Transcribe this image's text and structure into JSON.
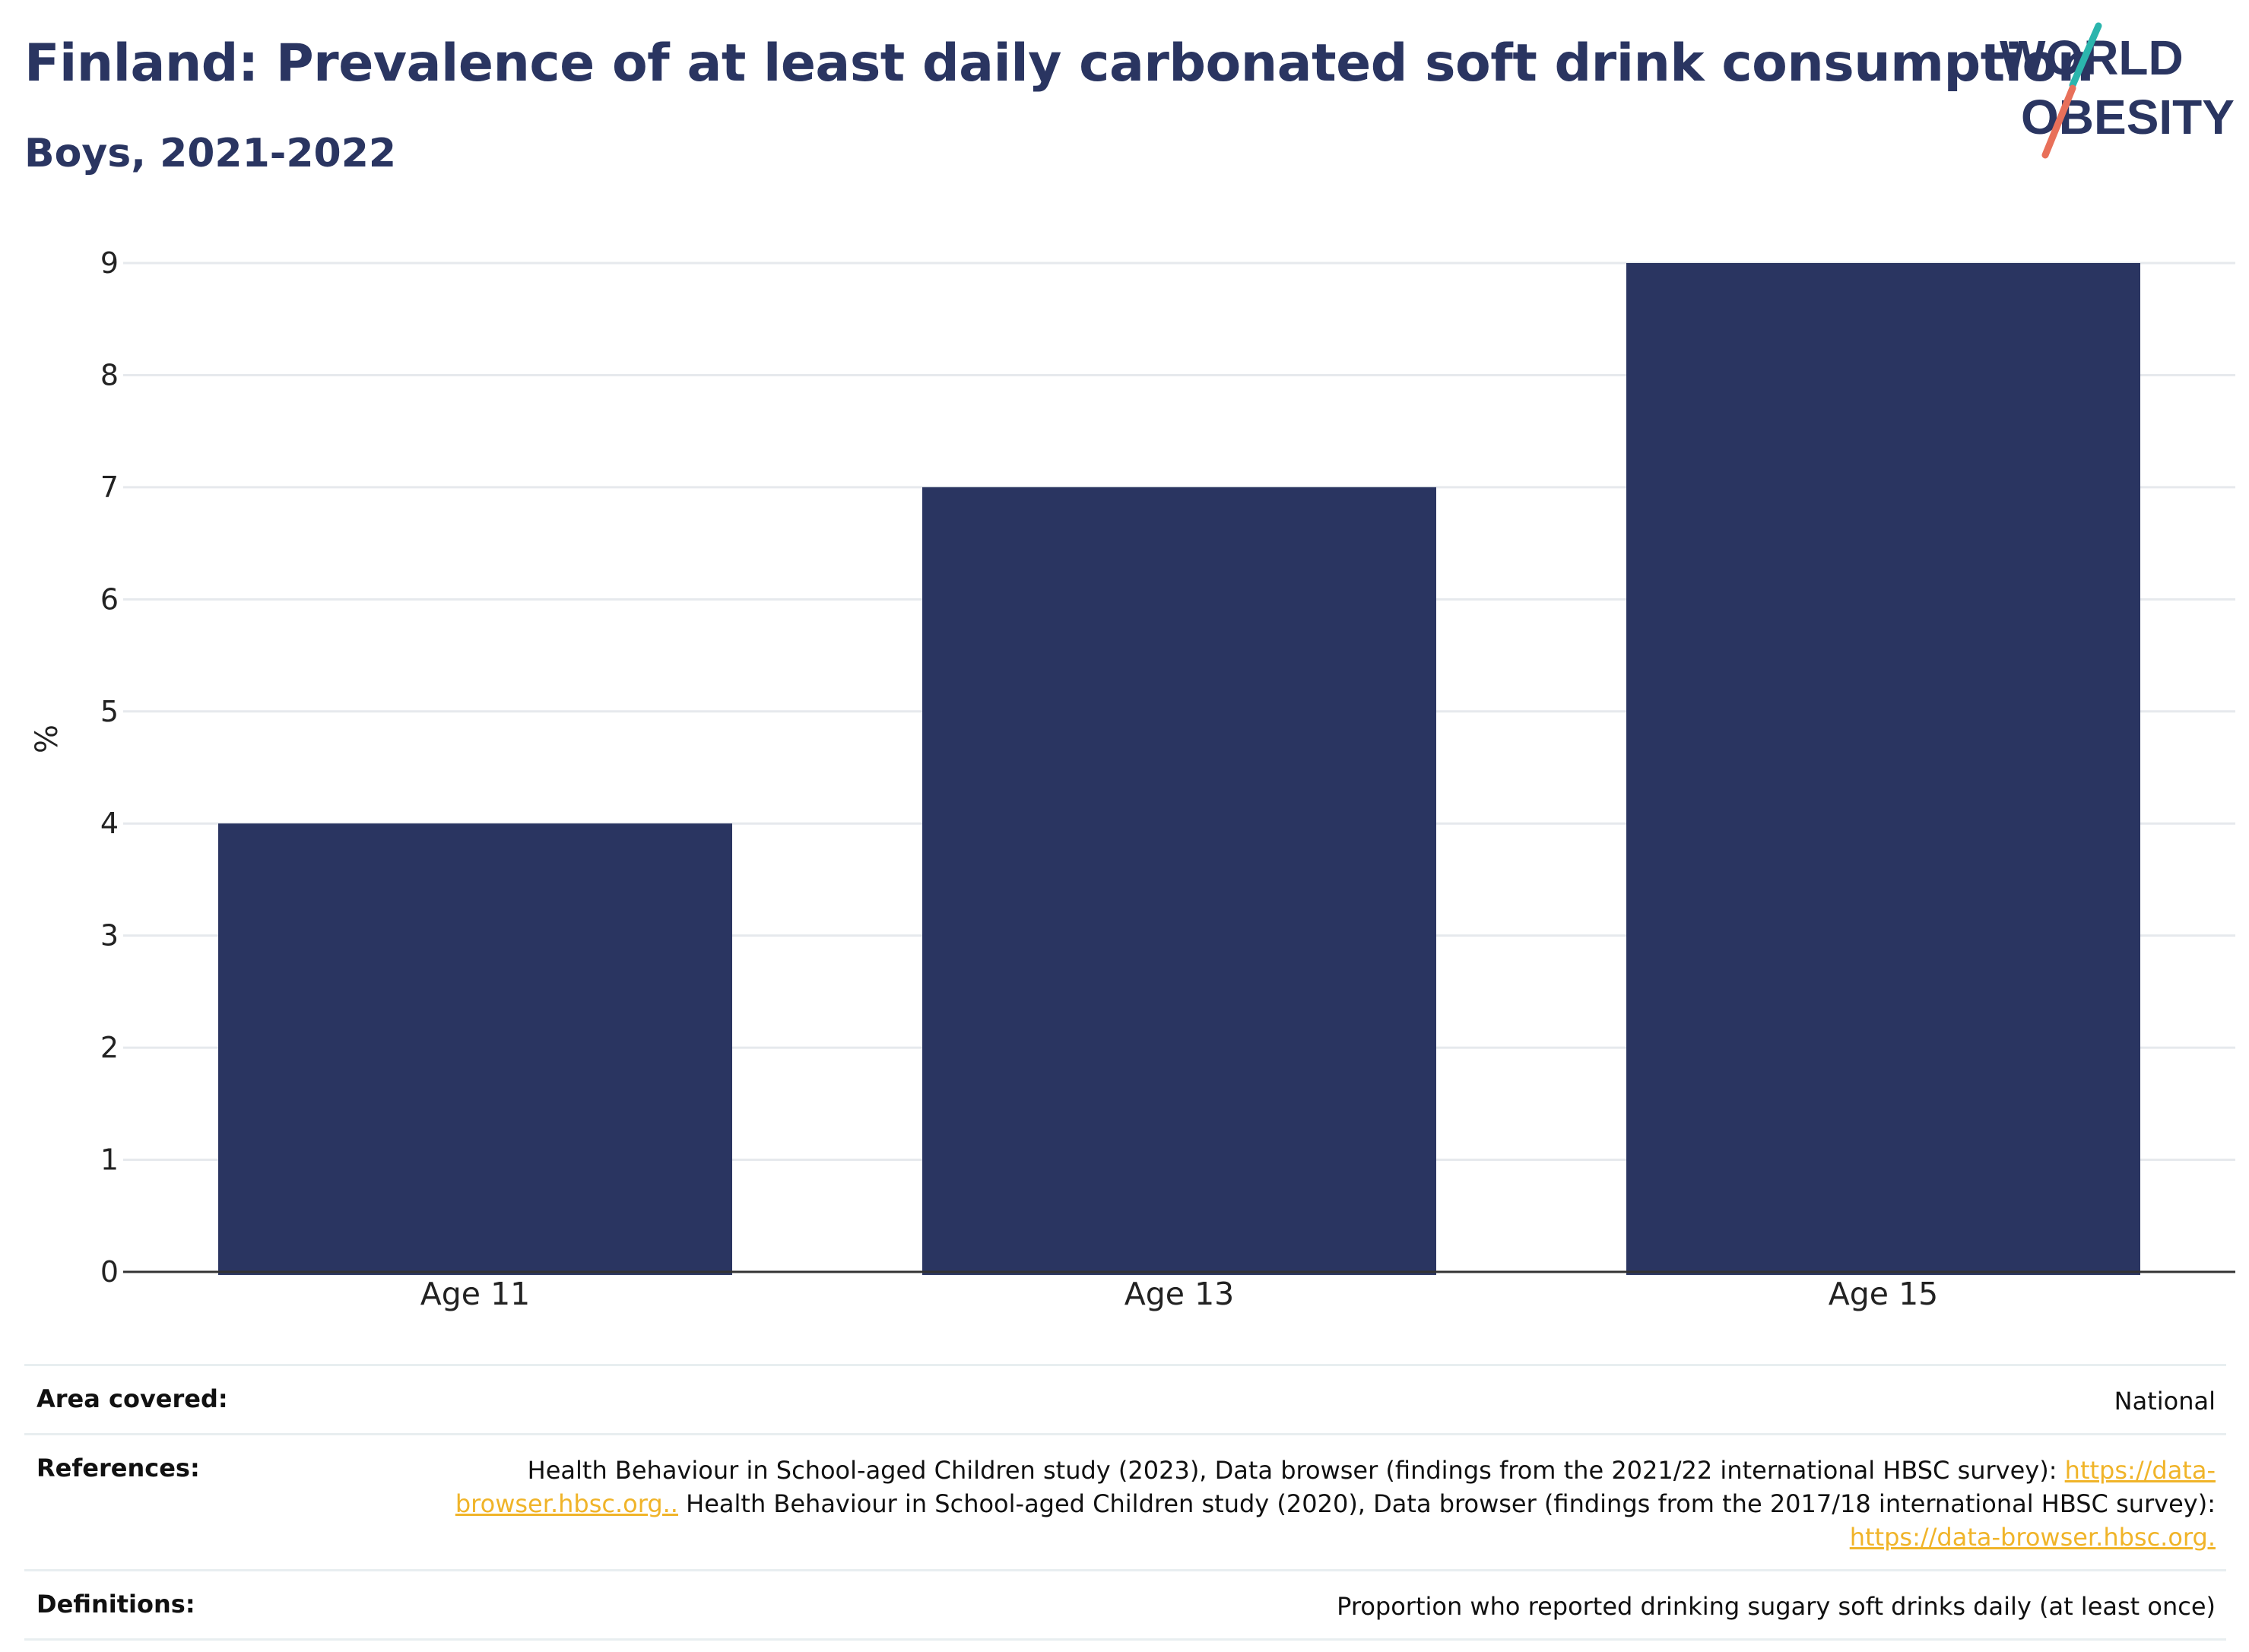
{
  "header": {
    "title": "Finland: Prevalence of at least daily carbonated soft drink consumption",
    "subtitle": "Boys, 2021-2022"
  },
  "logo": {
    "line1": "WORLD",
    "line2": "OBESITY",
    "accent_teal": "#2bb5ad",
    "accent_coral": "#e8705a"
  },
  "colors": {
    "bar": "#2a3561",
    "title": "#2a3561",
    "grid": "#e6e9ed",
    "axis": "#333333",
    "link": "#f0b429"
  },
  "chart_data": {
    "type": "bar",
    "categories": [
      "Age 11",
      "Age 13",
      "Age 15"
    ],
    "values": [
      4,
      7,
      9
    ],
    "title": "Finland: Prevalence of at least daily carbonated soft drink consumption",
    "subtitle": "Boys, 2021-2022",
    "xlabel": "",
    "ylabel": "%",
    "ylim": [
      0,
      9
    ],
    "yticks": [
      0,
      1,
      2,
      3,
      4,
      5,
      6,
      7,
      8,
      9
    ],
    "grid": true,
    "legend": "none"
  },
  "info": {
    "area": {
      "label": "Area covered:",
      "value": "National"
    },
    "references": {
      "label": "References:",
      "text1": "Health Behaviour in School-aged Children study (2023), Data browser (findings from the 2021/22 international HBSC survey): ",
      "link1": "https://data-browser.hbsc.org..",
      "text2": " Health Behaviour in School-aged Children study (2020), Data browser (findings from the 2017/18 international HBSC survey): ",
      "link2": "https://data-browser.hbsc.org."
    },
    "definitions": {
      "label": "Definitions:",
      "value": "Proportion who reported drinking sugary soft drinks daily (at least once)"
    }
  }
}
